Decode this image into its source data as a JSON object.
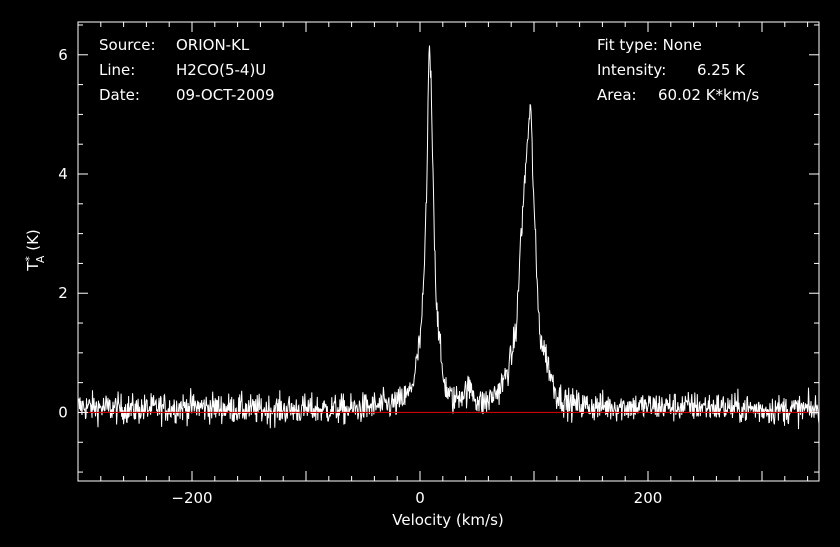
{
  "header_left": {
    "source_label": "Source:",
    "source_value": "ORION-KL",
    "line_label": "Line:",
    "line_value": "H2CO(5-4)U",
    "date_label": "Date:",
    "date_value": "09-OCT-2009"
  },
  "header_right": {
    "fit_text": "Fit type: None",
    "intensity_label": "Intensity:",
    "intensity_value": "6.25 K",
    "area_label": "Area:",
    "area_value": "60.02 K*km/s"
  },
  "chart_data": {
    "type": "line",
    "xlabel": "Velocity (km/s)",
    "ylabel": "T_A^* (K)",
    "xlim": [
      -300,
      350
    ],
    "ylim": [
      -1.15,
      6.55
    ],
    "xticks": [
      -200,
      0,
      200
    ],
    "yticks": [
      0,
      2,
      4,
      6
    ],
    "grid": false,
    "background": "#000000",
    "line_color": "#ffffff",
    "baseline_color": "#cc0000",
    "baseline": 0,
    "series": [
      {
        "x": [
          -300,
          -250,
          -200,
          -150,
          -100,
          -60,
          -40,
          -20,
          -10,
          -5,
          0,
          3,
          6,
          8,
          10,
          12,
          14,
          17,
          20,
          25,
          30,
          35,
          40,
          45,
          50,
          55,
          60,
          65,
          70,
          75,
          80,
          85,
          88,
          91,
          94,
          97,
          100,
          103,
          106,
          110,
          115,
          120,
          130,
          150,
          200,
          250,
          300,
          350
        ],
        "y": [
          0.1,
          0.05,
          0.1,
          0.05,
          0.05,
          0.05,
          0.1,
          0.15,
          0.3,
          0.6,
          1.2,
          2.0,
          3.8,
          6.25,
          5.4,
          3.5,
          2.0,
          1.2,
          0.6,
          0.3,
          0.2,
          0.3,
          0.35,
          0.4,
          0.2,
          0.15,
          0.2,
          0.3,
          0.4,
          0.6,
          0.9,
          1.5,
          2.8,
          3.6,
          4.5,
          5.15,
          3.5,
          2.0,
          1.2,
          1.0,
          0.6,
          0.3,
          0.15,
          0.1,
          0.1,
          0.1,
          0.05,
          0.05
        ]
      }
    ]
  }
}
